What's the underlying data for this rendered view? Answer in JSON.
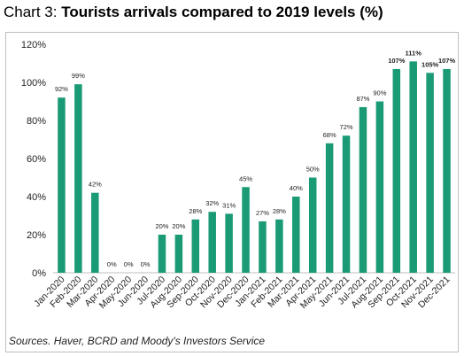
{
  "title": {
    "prefix": "Chart 3: ",
    "main": "Tourists arrivals compared to 2019 levels (%)"
  },
  "source": "Sources. Haver, BCRD and Moody's Investors Service",
  "colors": {
    "bar": "#1a9b76",
    "axis": "#bfbfbf",
    "text": "#222222"
  },
  "chart_data": {
    "type": "bar",
    "title": "Tourists arrivals compared to 2019 levels (%)",
    "categories": [
      "Jan-2020",
      "Feb-2020",
      "Mar-2020",
      "Apr-2020",
      "May-2020",
      "Jun-2020",
      "Jul-2020",
      "Aug-2020",
      "Sep-2020",
      "Oct-2020",
      "Nov-2020",
      "Dec-2020",
      "Jan-2021",
      "Feb-2021",
      "Mar-2021",
      "Apr-2021",
      "May-2021",
      "Jun-2021",
      "Jul-2021",
      "Aug-2021",
      "Sep-2021",
      "Oct-2021",
      "Nov-2021",
      "Dec-2021"
    ],
    "values": [
      92,
      99,
      42,
      0,
      0,
      0,
      20,
      20,
      28,
      32,
      31,
      45,
      27,
      28,
      40,
      50,
      68,
      72,
      87,
      90,
      107,
      111,
      105,
      107
    ],
    "data_labels": [
      "92%",
      "99%",
      "42%",
      "0%",
      "0%",
      "0%",
      "20%",
      "20%",
      "28%",
      "32%",
      "31%",
      "45%",
      "27%",
      "28%",
      "40%",
      "50%",
      "68%",
      "72%",
      "87%",
      "90%",
      "107%",
      "111%",
      "105%",
      "107%"
    ],
    "ylim": [
      0,
      120
    ],
    "yticks": [
      0,
      20,
      40,
      60,
      80,
      100,
      120
    ],
    "ytick_labels": [
      "0%",
      "20%",
      "40%",
      "60%",
      "80%",
      "100%",
      "120%"
    ],
    "grid": false,
    "legend": "none"
  }
}
